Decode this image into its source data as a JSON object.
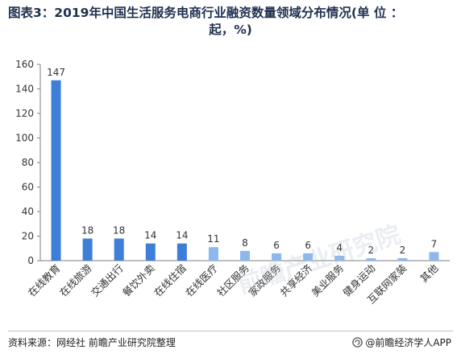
{
  "title": {
    "line1": "图表3：2019年中国生活服务电商行业融资数量领域分布情况(单 位 ：",
    "line2": "起，%)"
  },
  "footer": {
    "source": "资料来源：网经社 前瞻产业研究院整理",
    "brand": "@前瞻经济学人APP"
  },
  "watermark": "前瞻产业研究院",
  "colors": {
    "bar_dark": "#3d7fd8",
    "bar_light": "#8db8ee",
    "axis": "#7f7f7f",
    "label": "#333333"
  },
  "chart_data": {
    "type": "bar",
    "categories": [
      "在线教育",
      "在线旅游",
      "交通出行",
      "餐饮外卖",
      "在线住宿",
      "在线医疗",
      "社区服务",
      "家政服务",
      "共享经济",
      "美业服务",
      "健身运动",
      "互联网家装",
      "其他"
    ],
    "values": [
      147,
      18,
      18,
      14,
      14,
      11,
      8,
      6,
      6,
      4,
      2,
      2,
      7
    ],
    "ylim": [
      0,
      160
    ],
    "yticks": [
      0,
      20,
      40,
      60,
      80,
      100,
      120,
      140,
      160
    ],
    "gridlines": false,
    "data_labels": true,
    "highlight_count": 5
  }
}
